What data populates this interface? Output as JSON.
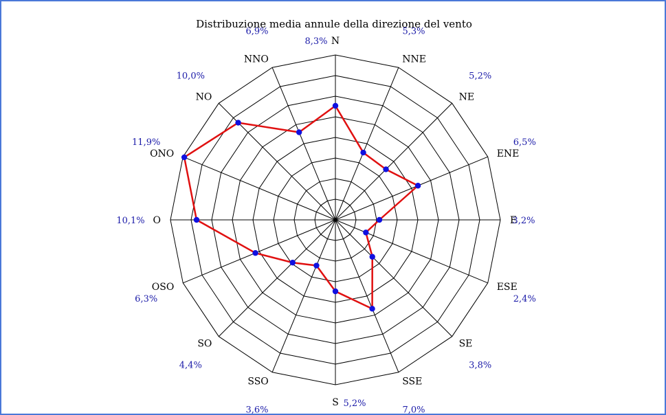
{
  "chart_data": {
    "type": "radar",
    "title": "Distribuzione media annule della direzione del vento",
    "directions": [
      "N",
      "NNE",
      "NE",
      "ENE",
      "E",
      "ESE",
      "SE",
      "SSE",
      "S",
      "SSO",
      "SO",
      "OSO",
      "O",
      "ONO",
      "NO",
      "NNO"
    ],
    "values": [
      8.3,
      5.3,
      5.2,
      6.5,
      3.2,
      2.4,
      3.8,
      7.0,
      5.2,
      3.6,
      4.4,
      6.3,
      10.1,
      11.9,
      10.0,
      6.9
    ],
    "value_labels": [
      "8,3%",
      "5,3%",
      "5,2%",
      "6,5%",
      "3,2%",
      "2,4%",
      "3,8%",
      "7,0%",
      "5,2%",
      "3,6%",
      "4,4%",
      "6,3%",
      "10,1%",
      "11,9%",
      "10,0%",
      "6,9%"
    ],
    "rmax": 12,
    "rings": 8,
    "grid": true,
    "colors": {
      "line": "#e01010",
      "marker": "#1010e0",
      "grid": "#000000",
      "value_text": "#1a1aa8",
      "border": "#4a78d8"
    }
  }
}
